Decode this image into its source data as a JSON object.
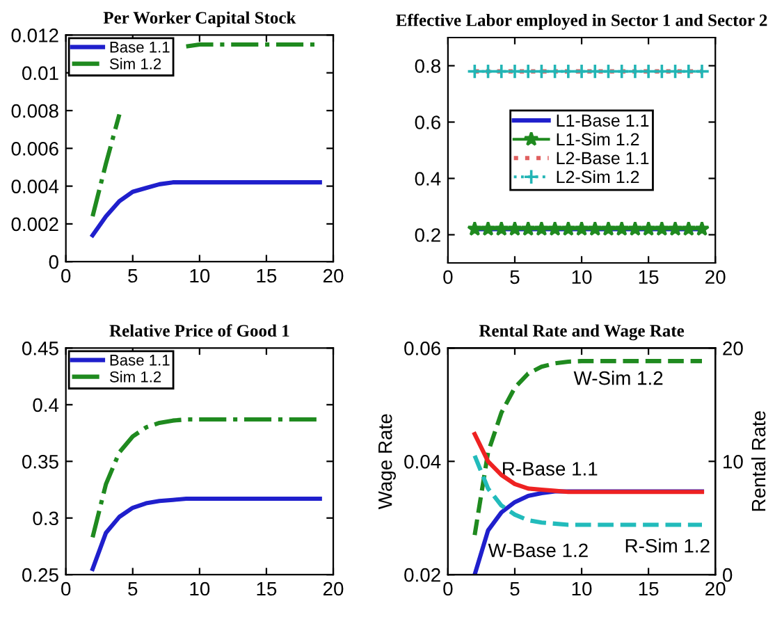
{
  "chart_data": [
    {
      "type": "line",
      "title": "Per Worker Capital Stock",
      "x": [
        2,
        3,
        4,
        5,
        6,
        7,
        8,
        9,
        10,
        11,
        12,
        13,
        14,
        15,
        16,
        17,
        18,
        19
      ],
      "xlim": [
        0,
        20
      ],
      "xticks": [
        0,
        5,
        10,
        15,
        20
      ],
      "ylim": [
        0,
        0.012
      ],
      "yticks": [
        0,
        0.002,
        0.004,
        0.006,
        0.008,
        0.01,
        0.012
      ],
      "legend": "top left",
      "grid": false,
      "series": [
        {
          "name": "Base 1.1",
          "color": "#1f1fcc",
          "line_style": "solid",
          "values": [
            0.0014,
            0.0024,
            0.0032,
            0.0037,
            0.0039,
            0.0041,
            0.0042,
            0.0042,
            0.0042,
            0.0042,
            0.0042,
            0.0042,
            0.0042,
            0.0042,
            0.0042,
            0.0042,
            0.0042,
            0.0042
          ]
        },
        {
          "name": "Sim 1.2",
          "color": "#1f8a1f",
          "line_style": "dashdot",
          "values": [
            0.0024,
            0.0052,
            0.0078,
            null,
            null,
            null,
            null,
            0.0114,
            0.0115,
            0.0115,
            0.0115,
            0.0115,
            0.0115,
            0.0115,
            0.0115,
            0.0115,
            0.0115,
            0.0115
          ]
        }
      ]
    },
    {
      "type": "line",
      "title": "Effective Labor employed in Sector 1 and Sector 2",
      "x": [
        2,
        3,
        4,
        5,
        6,
        7,
        8,
        9,
        10,
        11,
        12,
        13,
        14,
        15,
        16,
        17,
        18,
        19
      ],
      "xlim": [
        0,
        20
      ],
      "xticks": [
        0,
        5,
        10,
        15,
        20
      ],
      "ylim": [
        0.1,
        0.9
      ],
      "yticks": [
        0.2,
        0.4,
        0.6,
        0.8
      ],
      "legend": "center",
      "grid": false,
      "series": [
        {
          "name": "L1-Base 1.1",
          "color": "#1f1fcc",
          "line_style": "solid",
          "marker": "none",
          "values": [
            0.22,
            0.22,
            0.22,
            0.22,
            0.22,
            0.22,
            0.22,
            0.22,
            0.22,
            0.22,
            0.22,
            0.22,
            0.22,
            0.22,
            0.22,
            0.22,
            0.22,
            0.22
          ]
        },
        {
          "name": "L1-Sim 1.2",
          "color": "#1f8a1f",
          "line_style": "solid",
          "marker": "star",
          "values": [
            0.22,
            0.22,
            0.22,
            0.22,
            0.22,
            0.22,
            0.22,
            0.22,
            0.22,
            0.22,
            0.22,
            0.22,
            0.22,
            0.22,
            0.22,
            0.22,
            0.22,
            0.22
          ]
        },
        {
          "name": "L2-Base 1.1",
          "color": "#e06060",
          "line_style": "dotted",
          "marker": "none",
          "values": [
            0.78,
            0.78,
            0.78,
            0.78,
            0.78,
            0.78,
            0.78,
            0.78,
            0.78,
            0.78,
            0.78,
            0.78,
            0.78,
            0.78,
            0.78,
            0.78,
            0.78,
            0.78
          ]
        },
        {
          "name": "L2-Sim 1.2",
          "color": "#22b5b5",
          "line_style": "dotted",
          "marker": "cross",
          "values": [
            0.78,
            0.78,
            0.78,
            0.78,
            0.78,
            0.78,
            0.78,
            0.78,
            0.78,
            0.78,
            0.78,
            0.78,
            0.78,
            0.78,
            0.78,
            0.78,
            0.78,
            0.78
          ]
        }
      ]
    },
    {
      "type": "line",
      "title": "Relative Price of Good 1",
      "x": [
        2,
        3,
        4,
        5,
        6,
        7,
        8,
        9,
        10,
        11,
        12,
        13,
        14,
        15,
        16,
        17,
        18,
        19
      ],
      "xlim": [
        0,
        20
      ],
      "xticks": [
        0,
        5,
        10,
        15,
        20
      ],
      "ylim": [
        0.25,
        0.45
      ],
      "yticks": [
        0.25,
        0.3,
        0.35,
        0.4,
        0.45
      ],
      "legend": "top left",
      "grid": false,
      "series": [
        {
          "name": "Base 1.1",
          "color": "#1f1fcc",
          "line_style": "solid",
          "values": [
            0.255,
            0.287,
            0.301,
            0.309,
            0.313,
            0.315,
            0.316,
            0.317,
            0.317,
            0.317,
            0.317,
            0.317,
            0.317,
            0.317,
            0.317,
            0.317,
            0.317,
            0.317
          ]
        },
        {
          "name": "Sim 1.2",
          "color": "#1f8a1f",
          "line_style": "dashdot",
          "values": [
            0.283,
            0.33,
            0.358,
            0.372,
            0.38,
            0.384,
            0.386,
            0.387,
            0.387,
            0.387,
            0.387,
            0.387,
            0.387,
            0.387,
            0.387,
            0.387,
            0.387,
            0.387
          ]
        }
      ]
    },
    {
      "type": "line",
      "title": "Rental Rate and Wage Rate",
      "ylabel": "Wage Rate",
      "y2label": "Rental Rate",
      "x": [
        2,
        3,
        4,
        5,
        6,
        7,
        8,
        9,
        10,
        11,
        12,
        13,
        14,
        15,
        16,
        17,
        18,
        19
      ],
      "xlim": [
        0,
        20
      ],
      "xticks": [
        0,
        5,
        10,
        15,
        20
      ],
      "ylim": [
        0.02,
        0.06
      ],
      "yticks": [
        0.02,
        0.04,
        0.06
      ],
      "y2lim": [
        0,
        20
      ],
      "y2ticks": [
        0,
        10,
        20
      ],
      "legend": false,
      "grid": false,
      "series": [
        {
          "color": "#ee2222",
          "axis": "y2",
          "line_style": "solid",
          "values": [
            12.4,
            10.0,
            8.8,
            8.0,
            7.6,
            7.5,
            7.4,
            7.3,
            7.3,
            7.3,
            7.3,
            7.3,
            7.3,
            7.3,
            7.3,
            7.3,
            7.3,
            7.3
          ]
        },
        {
          "color": "#22bbbb",
          "axis": "y2",
          "line_style": "dashed",
          "values": [
            10.5,
            7.6,
            6.1,
            5.3,
            4.8,
            4.6,
            4.5,
            4.4,
            4.4,
            4.4,
            4.4,
            4.4,
            4.4,
            4.4,
            4.4,
            4.4,
            4.4,
            4.4
          ]
        },
        {
          "color": "#1f8a1f",
          "axis": "y",
          "line_style": "dashed",
          "values": [
            0.027,
            0.0416,
            0.0486,
            0.053,
            0.0555,
            0.0567,
            0.0573,
            0.0576,
            0.0577,
            0.0577,
            0.0577,
            0.0577,
            0.0577,
            0.0577,
            0.0577,
            0.0577,
            0.0577,
            0.0577
          ]
        },
        {
          "color": "#1f1fcc",
          "axis": "y",
          "line_style": "solid",
          "values": [
            0.02,
            0.0278,
            0.031,
            0.0328,
            0.0339,
            0.0344,
            0.0347,
            0.0347,
            0.0347,
            0.0347,
            0.0347,
            0.0347,
            0.0347,
            0.0347,
            0.0347,
            0.0347,
            0.0347,
            0.0347
          ]
        }
      ],
      "annotations": [
        "W-Sim 1.2",
        "R-Base 1.1",
        "R-Sim 1.2",
        "W-Base 1.2"
      ]
    }
  ]
}
